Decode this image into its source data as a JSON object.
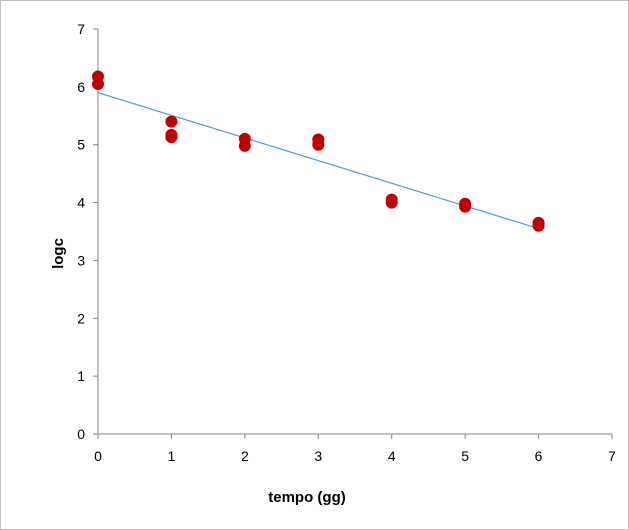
{
  "chart_data": {
    "type": "scatter",
    "title": "",
    "xlabel": "tempo (gg)",
    "ylabel": "logc",
    "xlim": [
      0,
      7
    ],
    "ylim": [
      0,
      7
    ],
    "x_ticks": [
      "0",
      "1",
      "2",
      "3",
      "4",
      "5",
      "6",
      "7"
    ],
    "y_ticks": [
      "0",
      "1",
      "2",
      "3",
      "4",
      "5",
      "6",
      "7"
    ],
    "grid": false,
    "legend": "none",
    "series": [
      {
        "color": "#c00000",
        "points": [
          {
            "x": 0,
            "y": 6.18
          },
          {
            "x": 0,
            "y": 6.05
          },
          {
            "x": 1,
            "y": 5.4
          },
          {
            "x": 1,
            "y": 5.17
          },
          {
            "x": 1,
            "y": 5.13
          },
          {
            "x": 2,
            "y": 5.1
          },
          {
            "x": 2,
            "y": 4.98
          },
          {
            "x": 3,
            "y": 5.09
          },
          {
            "x": 3,
            "y": 5.0
          },
          {
            "x": 4,
            "y": 4.05
          },
          {
            "x": 4,
            "y": 4.0
          },
          {
            "x": 5,
            "y": 3.98
          },
          {
            "x": 5,
            "y": 3.93
          },
          {
            "x": 6,
            "y": 3.65
          },
          {
            "x": 6,
            "y": 3.6
          }
        ]
      }
    ],
    "trendline": {
      "type": "linear",
      "color": "#4f9bd4",
      "x": [
        0,
        6
      ],
      "y": [
        5.9,
        3.55
      ]
    }
  }
}
